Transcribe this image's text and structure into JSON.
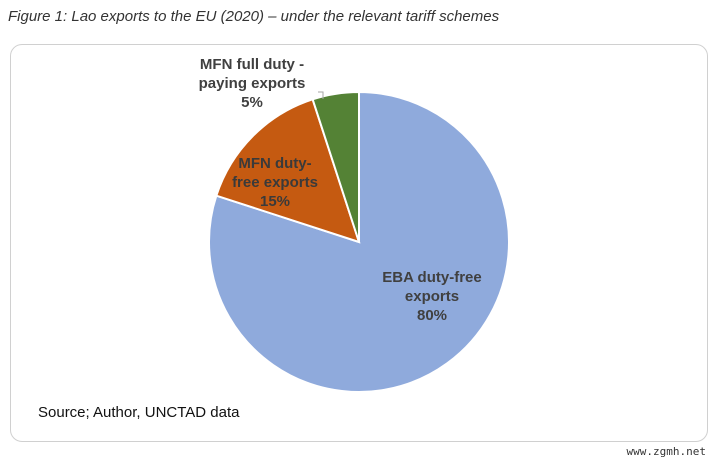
{
  "caption": "Figure 1: Lao exports to the EU (2020) – under the relevant tariff schemes",
  "source": "Source; Author, UNCTAD data",
  "watermark": "www.zgmh.net",
  "chart_data": {
    "type": "pie",
    "slices": [
      {
        "label_lines": [
          "EBA duty-free",
          "exports"
        ],
        "percent_label": "80%",
        "value": 80,
        "color": "#8faadc"
      },
      {
        "label_lines": [
          "MFN duty-",
          "free exports"
        ],
        "percent_label": "15%",
        "value": 15,
        "color": "#c55a11"
      },
      {
        "label_lines": [
          "MFN full duty -",
          "paying exports"
        ],
        "percent_label": "5%",
        "value": 5,
        "color": "#548235"
      }
    ],
    "start": "12 o'clock",
    "direction": "clockwise",
    "legend": "none"
  }
}
